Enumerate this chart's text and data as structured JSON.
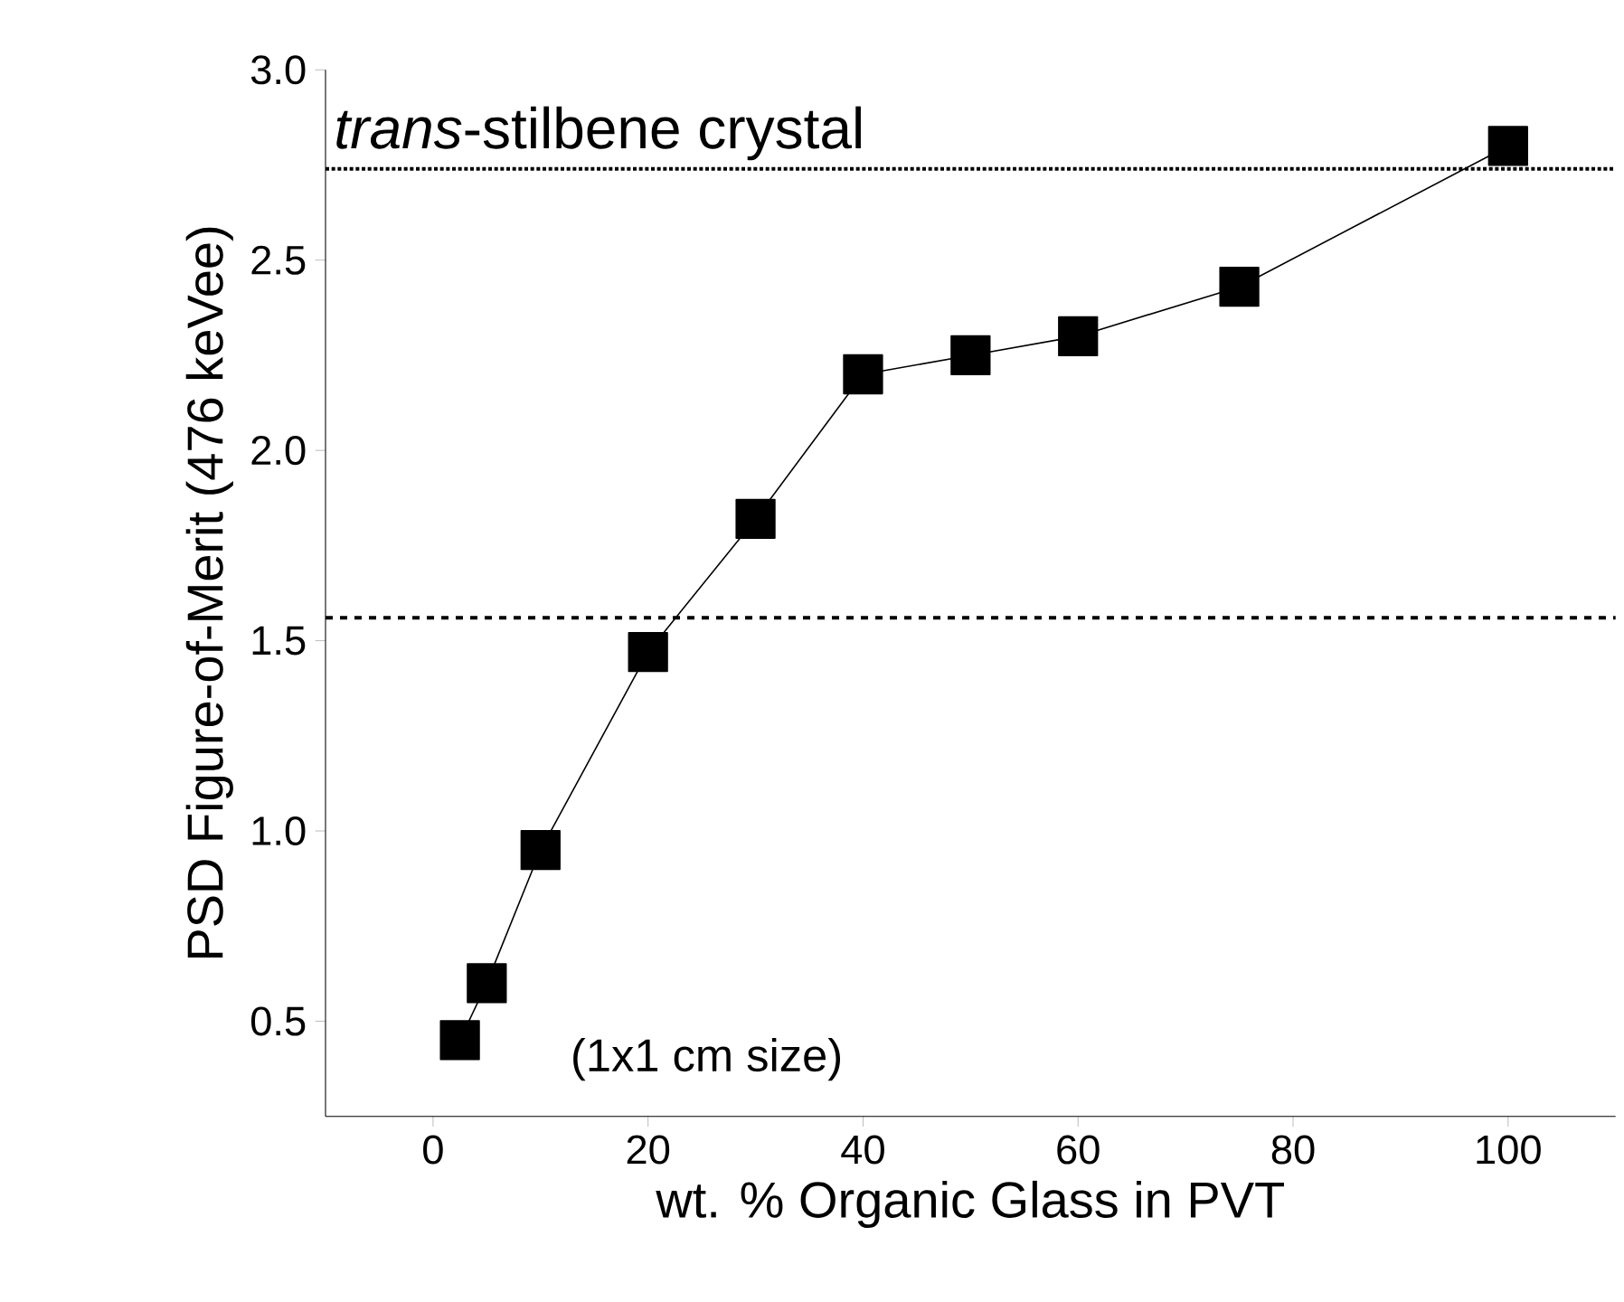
{
  "chart_data": {
    "type": "line",
    "xlabel": "wt. % Organic Glass in PVT",
    "ylabel": "PSD Figure-of-Merit (476 keVee)",
    "x": [
      2.5,
      5,
      10,
      20,
      30,
      40,
      50,
      60,
      75,
      100
    ],
    "series": [
      {
        "color": "#000000",
        "values": [
          0.45,
          0.6,
          0.95,
          1.47,
          1.82,
          2.2,
          2.25,
          2.3,
          2.43,
          2.8
        ]
      }
    ],
    "xlim": [
      -10,
      110
    ],
    "ylim": [
      0.25,
      3.0
    ],
    "xticks": [
      0,
      20,
      40,
      60,
      80,
      100
    ],
    "yticks": [
      {
        "value": 0.5,
        "label": "0.5"
      },
      {
        "value": 1.0,
        "label": "1.0"
      },
      {
        "value": 1.5,
        "label": "1.5"
      },
      {
        "value": 2.0,
        "label": "2.0"
      },
      {
        "value": 2.5,
        "label": "2.5"
      },
      {
        "value": 3.0,
        "label": "3.0"
      }
    ],
    "ref_lines": [
      {
        "axis": "y",
        "value": 2.74,
        "label": "*trans*-stilbene crystal",
        "line_style": "dotted",
        "color": "#000000"
      },
      {
        "axis": "y",
        "value": 1.56,
        "line_style": "dashed",
        "color": "#000000"
      }
    ],
    "annotations": [
      "(1x1 cm size)"
    ],
    "marker": "square",
    "line_style": "solid",
    "grid": false
  }
}
